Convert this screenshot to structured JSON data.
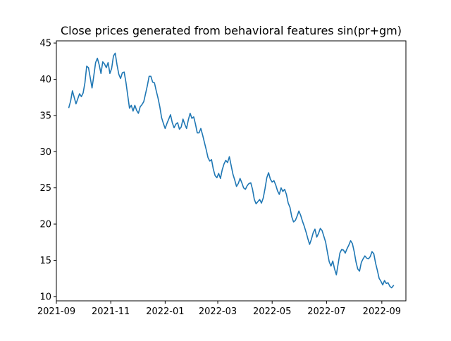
{
  "chart_data": {
    "type": "line",
    "title": "Close prices generated from behavioral features sin(pr+gm)",
    "xlabel": "",
    "ylabel": "",
    "xlim": [
      "2021-09-01",
      "2022-09-28"
    ],
    "ylim": [
      9.4,
      45.3
    ],
    "x_ticks": [
      {
        "value": "2021-09-01",
        "label": "2021-09"
      },
      {
        "value": "2021-11-01",
        "label": "2021-11"
      },
      {
        "value": "2022-01-01",
        "label": "2022-01"
      },
      {
        "value": "2022-03-01",
        "label": "2022-03"
      },
      {
        "value": "2022-05-01",
        "label": "2022-05"
      },
      {
        "value": "2022-07-01",
        "label": "2022-07"
      },
      {
        "value": "2022-09-01",
        "label": "2022-09"
      }
    ],
    "y_ticks": [
      {
        "value": 10,
        "label": "10"
      },
      {
        "value": 15,
        "label": "15"
      },
      {
        "value": 20,
        "label": "20"
      },
      {
        "value": 25,
        "label": "25"
      },
      {
        "value": 30,
        "label": "30"
      },
      {
        "value": 35,
        "label": "35"
      },
      {
        "value": 40,
        "label": "40"
      },
      {
        "value": 45,
        "label": "45"
      }
    ],
    "grid": false,
    "legend": "none",
    "series": [
      {
        "color": "#1f77b4",
        "x": [
          "2021-09-15",
          "2021-09-17",
          "2021-09-19",
          "2021-09-21",
          "2021-09-23",
          "2021-09-25",
          "2021-09-27",
          "2021-09-29",
          "2021-10-01",
          "2021-10-03",
          "2021-10-05",
          "2021-10-07",
          "2021-10-09",
          "2021-10-11",
          "2021-10-13",
          "2021-10-15",
          "2021-10-17",
          "2021-10-19",
          "2021-10-21",
          "2021-10-23",
          "2021-10-25",
          "2021-10-27",
          "2021-10-29",
          "2021-10-31",
          "2021-11-02",
          "2021-11-04",
          "2021-11-06",
          "2021-11-08",
          "2021-11-10",
          "2021-11-12",
          "2021-11-14",
          "2021-11-16",
          "2021-11-18",
          "2021-11-20",
          "2021-11-22",
          "2021-11-24",
          "2021-11-26",
          "2021-11-28",
          "2021-11-30",
          "2021-12-02",
          "2021-12-04",
          "2021-12-06",
          "2021-12-08",
          "2021-12-10",
          "2021-12-12",
          "2021-12-14",
          "2021-12-16",
          "2021-12-18",
          "2021-12-20",
          "2021-12-22",
          "2021-12-24",
          "2021-12-26",
          "2021-12-28",
          "2021-12-30",
          "2022-01-01",
          "2022-01-03",
          "2022-01-05",
          "2022-01-07",
          "2022-01-09",
          "2022-01-11",
          "2022-01-13",
          "2022-01-15",
          "2022-01-17",
          "2022-01-19",
          "2022-01-21",
          "2022-01-23",
          "2022-01-25",
          "2022-01-27",
          "2022-01-29",
          "2022-01-31",
          "2022-02-02",
          "2022-02-04",
          "2022-02-06",
          "2022-02-08",
          "2022-02-10",
          "2022-02-12",
          "2022-02-14",
          "2022-02-16",
          "2022-02-18",
          "2022-02-20",
          "2022-02-22",
          "2022-02-24",
          "2022-02-26",
          "2022-02-28",
          "2022-03-02",
          "2022-03-04",
          "2022-03-06",
          "2022-03-08",
          "2022-03-10",
          "2022-03-12",
          "2022-03-14",
          "2022-03-16",
          "2022-03-18",
          "2022-03-20",
          "2022-03-22",
          "2022-03-24",
          "2022-03-26",
          "2022-03-28",
          "2022-03-30",
          "2022-04-01",
          "2022-04-03",
          "2022-04-05",
          "2022-04-07",
          "2022-04-09",
          "2022-04-11",
          "2022-04-13",
          "2022-04-15",
          "2022-04-17",
          "2022-04-19",
          "2022-04-21",
          "2022-04-23",
          "2022-04-25",
          "2022-04-27",
          "2022-04-29",
          "2022-05-01",
          "2022-05-03",
          "2022-05-05",
          "2022-05-07",
          "2022-05-09",
          "2022-05-11",
          "2022-05-13",
          "2022-05-15",
          "2022-05-17",
          "2022-05-19",
          "2022-05-21",
          "2022-05-23",
          "2022-05-25",
          "2022-05-27",
          "2022-05-29",
          "2022-05-31",
          "2022-06-02",
          "2022-06-04",
          "2022-06-06",
          "2022-06-08",
          "2022-06-10",
          "2022-06-12",
          "2022-06-14",
          "2022-06-16",
          "2022-06-18",
          "2022-06-20",
          "2022-06-22",
          "2022-06-24",
          "2022-06-26",
          "2022-06-28",
          "2022-06-30",
          "2022-07-02",
          "2022-07-04",
          "2022-07-06",
          "2022-07-08",
          "2022-07-10",
          "2022-07-12",
          "2022-07-14",
          "2022-07-16",
          "2022-07-18",
          "2022-07-20",
          "2022-07-22",
          "2022-07-24",
          "2022-07-26",
          "2022-07-28",
          "2022-07-30",
          "2022-08-01",
          "2022-08-03",
          "2022-08-05",
          "2022-08-07",
          "2022-08-09",
          "2022-08-11",
          "2022-08-13",
          "2022-08-15",
          "2022-08-17",
          "2022-08-19",
          "2022-08-21",
          "2022-08-23",
          "2022-08-25",
          "2022-08-27",
          "2022-08-29",
          "2022-08-31",
          "2022-09-02",
          "2022-09-04",
          "2022-09-06",
          "2022-09-08",
          "2022-09-10",
          "2022-09-12",
          "2022-09-14"
        ],
        "y": [
          36.1,
          37.0,
          38.4,
          37.5,
          36.6,
          37.3,
          38.0,
          37.6,
          38.1,
          39.5,
          41.8,
          41.6,
          40.2,
          38.8,
          40.5,
          42.3,
          42.9,
          42.0,
          40.8,
          42.4,
          42.1,
          41.6,
          42.3,
          40.8,
          41.5,
          43.2,
          43.6,
          42.0,
          40.7,
          40.1,
          40.9,
          41.0,
          39.6,
          37.8,
          36.0,
          36.4,
          35.6,
          36.4,
          35.7,
          35.3,
          36.2,
          36.5,
          36.9,
          38.0,
          39.1,
          40.4,
          40.4,
          39.6,
          39.5,
          38.4,
          37.4,
          36.2,
          34.7,
          33.9,
          33.2,
          33.9,
          34.5,
          35.1,
          34.0,
          33.3,
          33.8,
          34.0,
          33.1,
          33.4,
          34.5,
          33.8,
          33.2,
          34.4,
          35.3,
          34.6,
          34.8,
          33.8,
          32.6,
          32.6,
          33.2,
          32.3,
          31.3,
          30.3,
          29.2,
          28.7,
          28.9,
          27.6,
          26.7,
          26.4,
          27.0,
          26.3,
          27.5,
          28.3,
          28.8,
          28.5,
          29.3,
          28.1,
          26.9,
          26.1,
          25.2,
          25.6,
          26.3,
          25.7,
          25.0,
          24.8,
          25.3,
          25.6,
          25.7,
          24.8,
          23.4,
          22.8,
          23.1,
          23.4,
          22.9,
          23.6,
          24.9,
          26.4,
          27.1,
          26.2,
          25.8,
          26.0,
          25.4,
          24.6,
          24.1,
          25.0,
          24.5,
          24.8,
          24.1,
          22.9,
          22.3,
          21.0,
          20.3,
          20.5,
          21.1,
          21.8,
          21.2,
          20.4,
          19.7,
          18.9,
          18.0,
          17.2,
          17.9,
          18.8,
          19.3,
          18.2,
          18.7,
          19.4,
          19.1,
          18.3,
          17.5,
          16.1,
          14.8,
          14.2,
          14.9,
          13.8,
          13.0,
          14.5,
          16.0,
          16.5,
          16.4,
          16.0,
          16.6,
          17.1,
          17.7,
          17.3,
          16.2,
          14.8,
          13.8,
          13.5,
          14.7,
          15.2,
          15.6,
          15.3,
          15.2,
          15.5,
          16.2,
          15.9,
          14.6,
          13.6,
          12.5,
          12.1,
          11.6,
          12.2,
          11.8,
          11.9,
          11.4,
          11.2,
          11.5
        ]
      }
    ]
  }
}
